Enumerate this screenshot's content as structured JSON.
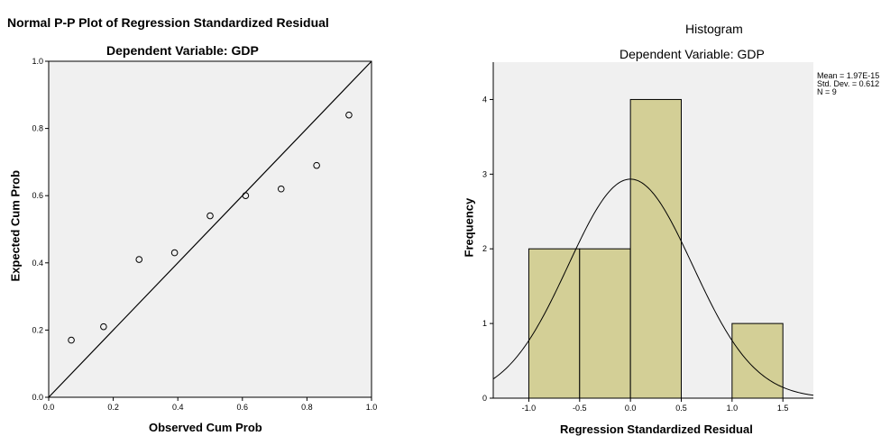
{
  "chart_data": [
    {
      "type": "scatter",
      "title": "Normal P-P Plot of Regression Standardized Residual",
      "subtitle": "Dependent Variable: GDP",
      "xlabel": "Observed Cum Prob",
      "ylabel": "Expected Cum Prob",
      "xlim": [
        0.0,
        1.0
      ],
      "ylim": [
        0.0,
        1.0
      ],
      "xticks": [
        "0.0",
        "0.2",
        "0.4",
        "0.6",
        "0.8",
        "1.0"
      ],
      "yticks": [
        "0.0",
        "0.2",
        "0.4",
        "0.6",
        "0.8",
        "1.0"
      ],
      "reference_line": [
        [
          0.0,
          0.0
        ],
        [
          1.0,
          1.0
        ]
      ],
      "points": [
        {
          "x": 0.07,
          "y": 0.17
        },
        {
          "x": 0.17,
          "y": 0.21
        },
        {
          "x": 0.28,
          "y": 0.41
        },
        {
          "x": 0.39,
          "y": 0.43
        },
        {
          "x": 0.5,
          "y": 0.54
        },
        {
          "x": 0.61,
          "y": 0.6
        },
        {
          "x": 0.72,
          "y": 0.62
        },
        {
          "x": 0.83,
          "y": 0.69
        },
        {
          "x": 0.93,
          "y": 0.84
        }
      ],
      "colors": {
        "plot_bg": "#f0f0f0",
        "marker": "#000000"
      }
    },
    {
      "type": "bar",
      "title": "Histogram",
      "subtitle": "Dependent Variable: GDP",
      "xlabel": "Regression Standardized Residual",
      "ylabel": "Frequency",
      "xlim": [
        -1.35,
        1.8
      ],
      "ylim": [
        0,
        4.5
      ],
      "xticks": [
        "-1.0",
        "-0.5",
        "0.0",
        "0.5",
        "1.0",
        "1.5"
      ],
      "yticks": [
        "0",
        "1",
        "2",
        "3",
        "4"
      ],
      "bins": [
        {
          "from": -1.0,
          "to": -0.5,
          "count": 2
        },
        {
          "from": -0.5,
          "to": 0.0,
          "count": 2
        },
        {
          "from": 0.0,
          "to": 0.5,
          "count": 4
        },
        {
          "from": 0.5,
          "to": 1.0,
          "count": 0
        },
        {
          "from": 1.0,
          "to": 1.5,
          "count": 1
        }
      ],
      "normal_curve": {
        "mean": 0.0,
        "sd": 0.612,
        "n": 9,
        "bin_width": 0.5
      },
      "stats": [
        "Mean = 1.97E-15",
        "Std. Dev. = 0.612",
        "N = 9"
      ],
      "colors": {
        "plot_bg": "#f0f0f0",
        "bar_fill": "#d3cf96",
        "bar_edge": "#000000"
      }
    }
  ]
}
